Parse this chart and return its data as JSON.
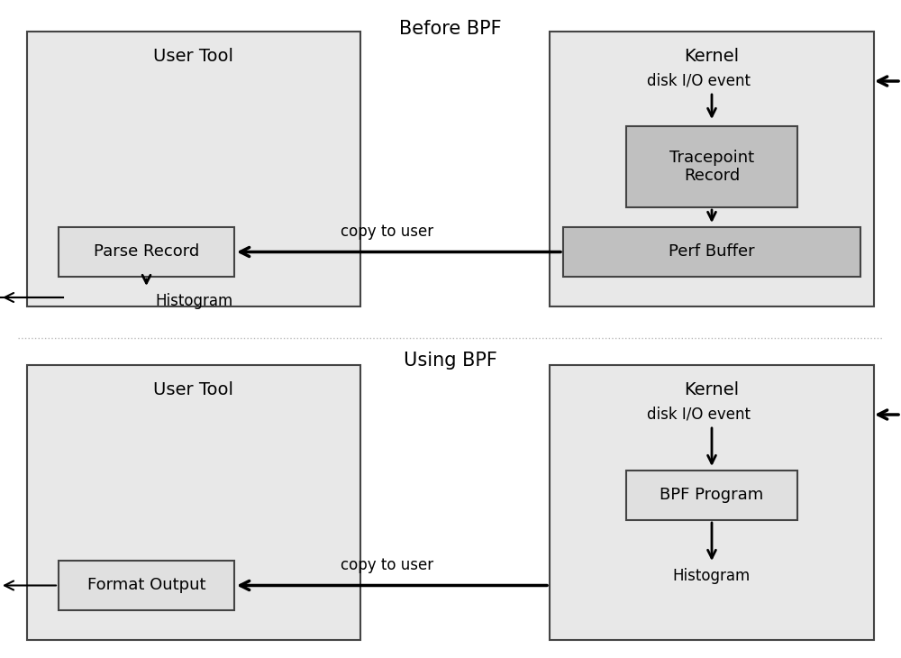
{
  "bg_color": "#ffffff",
  "panel_bg": "#e8e8e8",
  "box_bg_dark": "#c0c0c0",
  "box_bg_medium": "#d0d0d0",
  "box_bg_light": "#e0e0e0",
  "box_border": "#444444",
  "separator_color": "#bbbbbb",
  "top_title": "Before BPF",
  "top_user_label": "User Tool",
  "top_kernel_label": "Kernel",
  "top_disk_event": "disk I/O event",
  "top_tracepoint": "Tracepoint\nRecord",
  "top_perf_buffer": "Perf Buffer",
  "top_parse_record": "Parse Record",
  "top_histogram": "Histogram",
  "top_copy_label": "copy to user",
  "bot_title": "Using BPF",
  "bot_user_label": "User Tool",
  "bot_kernel_label": "Kernel",
  "bot_disk_event": "disk I/O event",
  "bot_bpf_program": "BPF Program",
  "bot_histogram": "Histogram",
  "bot_format_output": "Format Output",
  "bot_copy_label": "copy to user",
  "font_size_title": 15,
  "font_size_label": 14,
  "font_size_box": 13,
  "font_size_small": 12
}
